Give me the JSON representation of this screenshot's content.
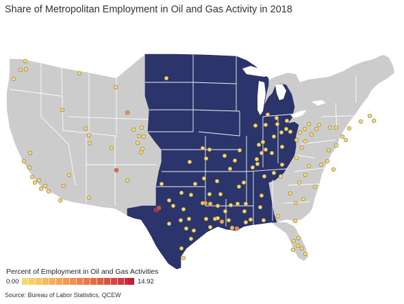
{
  "title": "Share of Metropolitan Employment in Oil and Gas Activity in 2018",
  "source": "Source: Bureau of Labor Statistics, QCEW",
  "legend": {
    "title": "Percent of Employment in Oil and Gas Activities",
    "min": "0.00",
    "max": "14.92",
    "color_low": "#f6d870",
    "color_high": "#c21e3a"
  },
  "colors": {
    "highlighted_region": "#2b356b",
    "other_region": "#cccccc",
    "state_border": "#ffffff",
    "highlighted_border": "#1d2550"
  },
  "regions": {
    "highlighted": "Central U.S. states (Montana east to Ohio, south to Texas and Alabama)",
    "other": "Remaining contiguous U.S. states"
  }
}
